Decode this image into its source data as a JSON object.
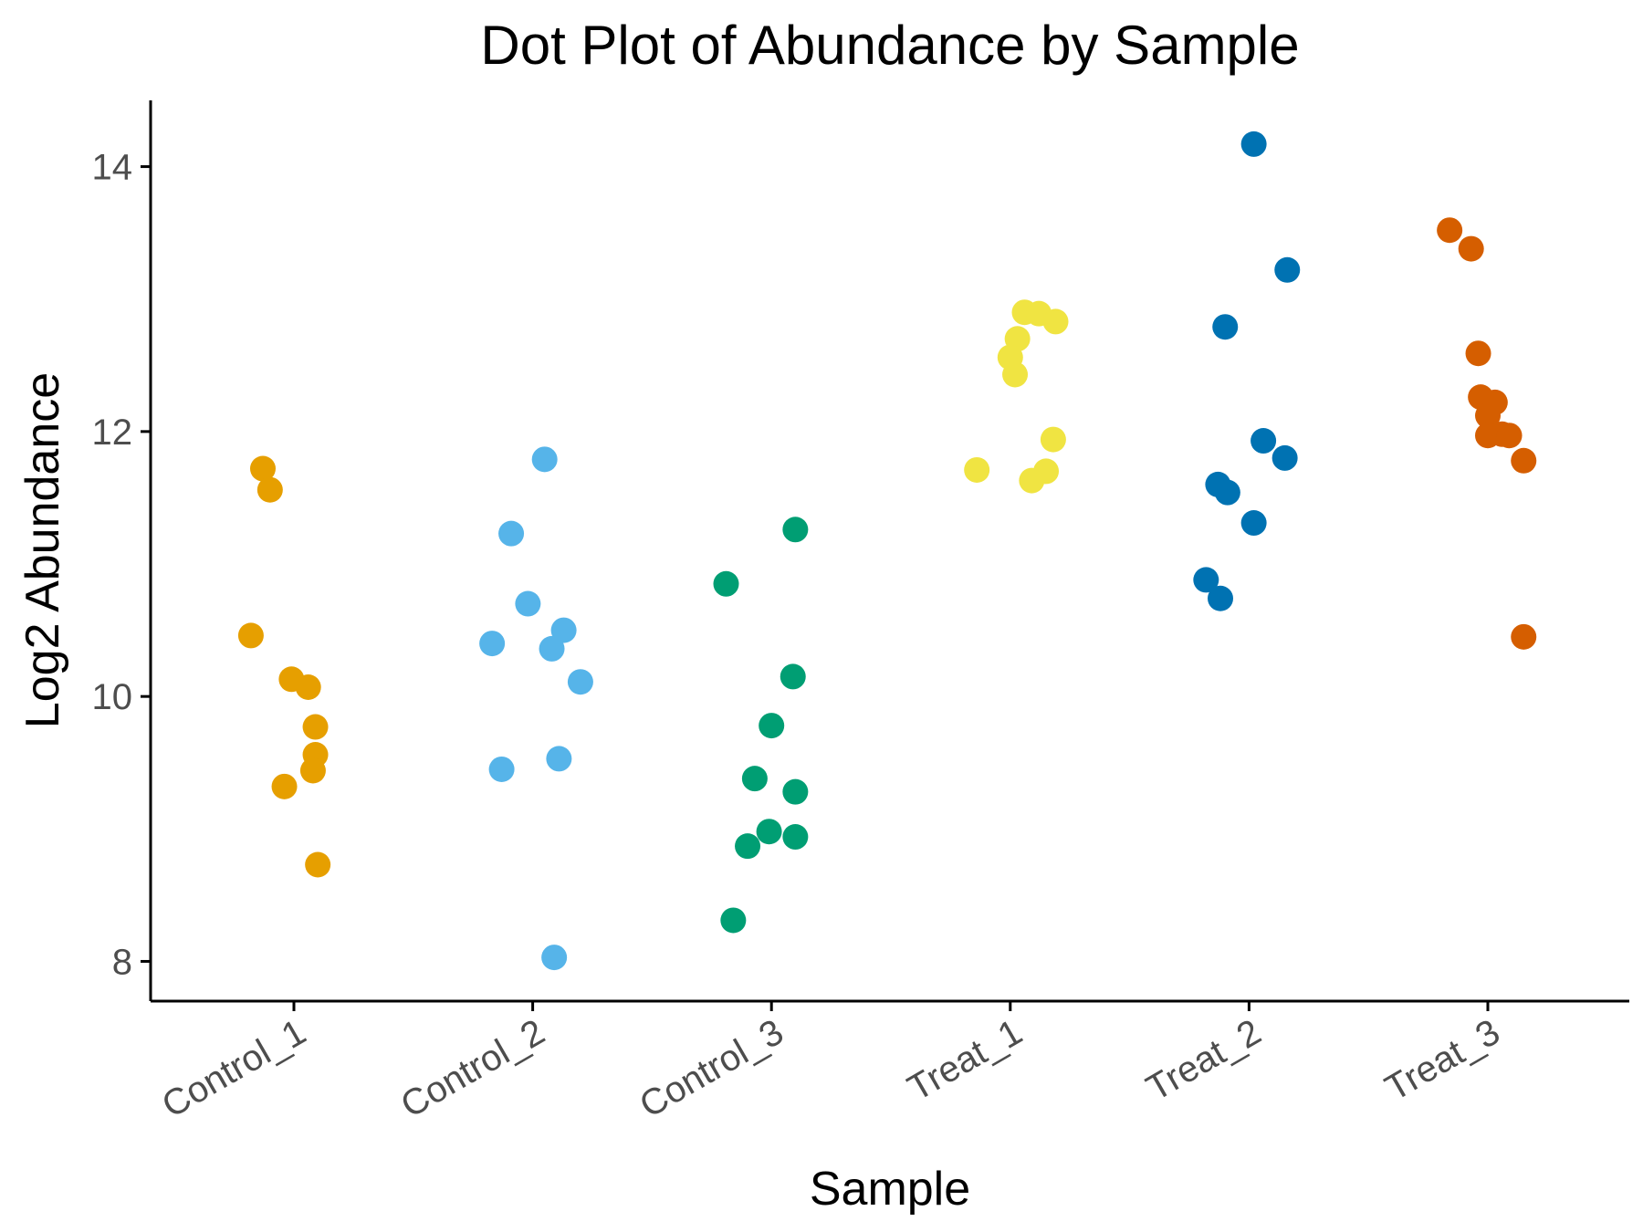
{
  "chart_data": {
    "type": "scatter",
    "title": "Dot Plot of Abundance by Sample",
    "xlabel": "Sample",
    "ylabel": "Log2 Abundance",
    "categories": [
      "Control_1",
      "Control_2",
      "Control_3",
      "Treat_1",
      "Treat_2",
      "Treat_3"
    ],
    "ylim": [
      7.7,
      14.5
    ],
    "yticks": [
      8,
      10,
      12,
      14
    ],
    "grid": false,
    "legend": "none",
    "colors": [
      "#E69F00",
      "#56B4E9",
      "#009E73",
      "#F0E442",
      "#0072B2",
      "#D55E00"
    ],
    "series": [
      {
        "category": "Control_1",
        "x_jitter": [
          -0.18,
          -0.13,
          -0.1,
          -0.01,
          0.06,
          0.09,
          0.09,
          0.08,
          -0.04,
          0.1
        ],
        "values": [
          10.46,
          11.72,
          11.56,
          10.13,
          10.07,
          9.77,
          9.56,
          9.44,
          9.32,
          8.73
        ]
      },
      {
        "category": "Control_2",
        "x_jitter": [
          0.05,
          -0.09,
          -0.02,
          0.13,
          -0.17,
          0.08,
          0.2,
          -0.13,
          0.11,
          0.09
        ],
        "values": [
          11.79,
          11.23,
          10.7,
          10.5,
          10.4,
          10.36,
          10.11,
          9.45,
          9.53,
          8.03
        ]
      },
      {
        "category": "Control_3",
        "x_jitter": [
          -0.19,
          0.1,
          0.09,
          0.0,
          -0.07,
          0.1,
          -0.01,
          -0.1,
          0.1,
          -0.16
        ],
        "values": [
          10.85,
          11.26,
          10.15,
          9.78,
          9.38,
          9.28,
          8.98,
          8.87,
          8.94,
          8.31
        ]
      },
      {
        "category": "Treat_1",
        "x_jitter": [
          0.06,
          0.12,
          0.19,
          0.03,
          0.0,
          0.02,
          0.18,
          -0.14,
          0.15,
          0.09
        ],
        "values": [
          12.9,
          12.89,
          12.83,
          12.7,
          12.56,
          12.43,
          11.94,
          11.71,
          11.7,
          11.63
        ]
      },
      {
        "category": "Treat_2",
        "x_jitter": [
          0.02,
          0.16,
          -0.1,
          0.06,
          0.15,
          -0.13,
          -0.09,
          0.02,
          -0.18,
          -0.12
        ],
        "values": [
          14.17,
          13.22,
          12.79,
          11.93,
          11.8,
          11.6,
          11.54,
          11.31,
          10.88,
          10.74
        ]
      },
      {
        "category": "Treat_3",
        "x_jitter": [
          -0.16,
          -0.07,
          -0.04,
          -0.03,
          0.03,
          0.0,
          0.06,
          0.0,
          0.09,
          0.15,
          0.15
        ],
        "values": [
          13.52,
          13.38,
          12.59,
          12.26,
          12.22,
          12.12,
          11.98,
          11.97,
          11.97,
          11.78,
          10.45
        ]
      }
    ]
  }
}
